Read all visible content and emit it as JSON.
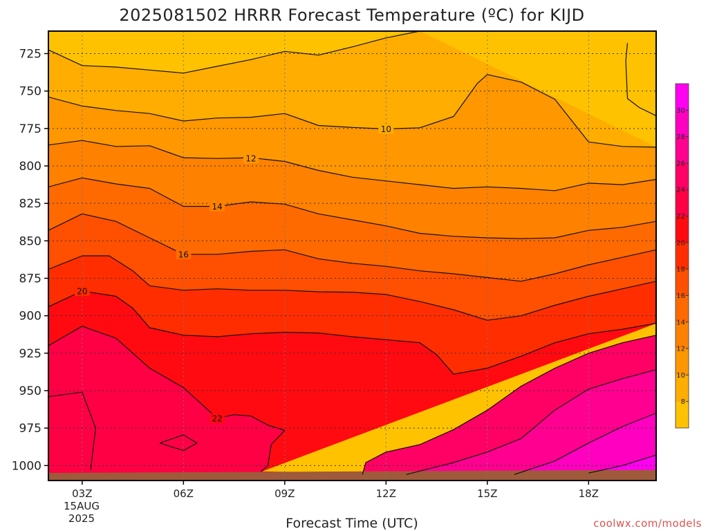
{
  "chart_data": {
    "type": "contour",
    "title": "2025081502 HRRR Forecast Temperature (ºC) for KIJD",
    "xlabel": "Forecast Time (UTC)",
    "credit": "coolwx.com/models",
    "y_axis": {
      "inverted": true,
      "ticks": [
        725,
        750,
        775,
        800,
        825,
        850,
        875,
        900,
        925,
        950,
        975,
        1000
      ],
      "tick_labels": [
        "725",
        "750",
        "775",
        "800",
        "825",
        "850",
        "875",
        "900",
        "925",
        "950",
        "975",
        "1000"
      ],
      "range": [
        1010,
        710
      ]
    },
    "x_axis": {
      "range": [
        2,
        20
      ],
      "ticks": [
        3,
        6,
        9,
        12,
        15,
        18
      ],
      "tick_labels": [
        "03Z",
        "06Z",
        "09Z",
        "12Z",
        "15Z",
        "18Z"
      ],
      "date_line1": "15AUG",
      "date_line2": "2025"
    },
    "grid": true,
    "colorbar": {
      "placement": "right",
      "levels": [
        8,
        10,
        12,
        14,
        16,
        18,
        20,
        22,
        24,
        26,
        28,
        30
      ],
      "labels": [
        "8",
        "10",
        "12",
        "14",
        "16",
        "18",
        "20",
        "22",
        "24",
        "26",
        "28",
        "30"
      ],
      "colors": [
        "#ffc200",
        "#ffad00",
        "#ff9700",
        "#ff8100",
        "#ff6a00",
        "#ff4f00",
        "#ff2d00",
        "#ff0a10",
        "#ff0045",
        "#ff0065",
        "#ff0090",
        "#ff00c0",
        "#ff00f0"
      ]
    },
    "ground_color": "#9e5a3a",
    "contours": [
      {
        "level": 10,
        "label": "10",
        "label_at": [
          12,
          775.3
        ],
        "points": [
          [
            2,
            722.5
          ],
          [
            3,
            733
          ],
          [
            4,
            734
          ],
          [
            5,
            736
          ],
          [
            6,
            738
          ],
          [
            7,
            733.5
          ],
          [
            8,
            729
          ],
          [
            9,
            723.5
          ],
          [
            10,
            726
          ],
          [
            11,
            720.5
          ],
          [
            12,
            714.5
          ],
          [
            13,
            710
          ]
        ]
      },
      {
        "level": 10,
        "points": [
          [
            2,
            754
          ],
          [
            3,
            760
          ],
          [
            4,
            763
          ],
          [
            5,
            765
          ],
          [
            6,
            770
          ],
          [
            7,
            768
          ],
          [
            8,
            767.5
          ],
          [
            9,
            765
          ],
          [
            10,
            773
          ],
          [
            11,
            774.3
          ],
          [
            12,
            775.3
          ],
          [
            13,
            774.5
          ],
          [
            14,
            767
          ],
          [
            14.7,
            745
          ],
          [
            15,
            739
          ],
          [
            16,
            744
          ],
          [
            17,
            755.5
          ],
          [
            18,
            784
          ],
          [
            19,
            787
          ],
          [
            20,
            787.5
          ]
        ]
      },
      {
        "level": 10,
        "points": [
          [
            19.15,
            718
          ],
          [
            19.1,
            730
          ],
          [
            19.15,
            755
          ],
          [
            19.5,
            761
          ],
          [
            20,
            766.5
          ]
        ]
      },
      {
        "level": 12,
        "label": "12",
        "label_at": [
          8,
          795
        ],
        "points": [
          [
            2,
            786
          ],
          [
            3,
            783
          ],
          [
            4,
            787
          ],
          [
            5,
            786.5
          ],
          [
            6,
            794.5
          ],
          [
            7,
            795
          ],
          [
            8,
            794.5
          ],
          [
            9,
            797
          ],
          [
            10,
            803
          ],
          [
            11,
            807.5
          ],
          [
            12,
            810
          ],
          [
            13,
            812.5
          ],
          [
            14,
            815
          ],
          [
            15,
            814
          ],
          [
            16,
            815
          ],
          [
            17,
            816.5
          ],
          [
            18,
            811.5
          ],
          [
            19,
            812.5
          ],
          [
            20,
            809
          ]
        ]
      },
      {
        "level": 14,
        "label": "14",
        "label_at": [
          7,
          827
        ],
        "points": [
          [
            2,
            814
          ],
          [
            3,
            808
          ],
          [
            4,
            812
          ],
          [
            5,
            815
          ],
          [
            6,
            827
          ],
          [
            7,
            827
          ],
          [
            8,
            824
          ],
          [
            9,
            825.5
          ],
          [
            10,
            832
          ],
          [
            11,
            836
          ],
          [
            12,
            840
          ],
          [
            13,
            845
          ],
          [
            14,
            847
          ],
          [
            15,
            848
          ],
          [
            16,
            848.5
          ],
          [
            17,
            848
          ],
          [
            18,
            843
          ],
          [
            19,
            841
          ],
          [
            20,
            837
          ]
        ]
      },
      {
        "level": 16,
        "label": "16",
        "label_at": [
          6,
          859
        ],
        "points": [
          [
            2,
            843
          ],
          [
            3,
            832
          ],
          [
            4,
            837
          ],
          [
            5,
            848
          ],
          [
            6,
            859
          ],
          [
            7,
            859
          ],
          [
            8,
            857
          ],
          [
            9,
            856
          ],
          [
            10,
            862
          ],
          [
            11,
            865
          ],
          [
            12,
            867
          ],
          [
            13,
            870
          ],
          [
            14,
            872
          ],
          [
            15,
            874.5
          ],
          [
            16,
            877
          ],
          [
            17,
            872
          ],
          [
            18,
            866
          ],
          [
            19,
            861
          ],
          [
            20,
            856
          ]
        ]
      },
      {
        "level": 18,
        "points": [
          [
            2,
            869
          ],
          [
            3,
            860
          ],
          [
            3.8,
            860
          ],
          [
            4.5,
            870
          ],
          [
            5,
            880
          ],
          [
            6,
            883
          ],
          [
            7,
            882
          ],
          [
            8,
            883
          ],
          [
            9,
            883
          ],
          [
            10,
            884
          ],
          [
            11,
            884.3
          ],
          [
            12,
            885.8
          ],
          [
            13,
            890.5
          ],
          [
            14,
            896
          ],
          [
            15,
            903
          ],
          [
            16,
            900
          ],
          [
            17,
            893
          ],
          [
            18,
            887
          ],
          [
            19,
            882
          ],
          [
            20,
            877
          ]
        ]
      },
      {
        "level": 20,
        "label": "20",
        "label_at": [
          3,
          883.5
        ],
        "points": [
          [
            2,
            894
          ],
          [
            3,
            883.5
          ],
          [
            4,
            887
          ],
          [
            4.5,
            895
          ],
          [
            5,
            908
          ],
          [
            6,
            913
          ],
          [
            7,
            914
          ],
          [
            8,
            912
          ],
          [
            9,
            911
          ],
          [
            10,
            911.5
          ],
          [
            11,
            914
          ],
          [
            12,
            916
          ],
          [
            13,
            918
          ],
          [
            13.5,
            926
          ],
          [
            14,
            939
          ],
          [
            15,
            935
          ],
          [
            16,
            927
          ],
          [
            17,
            918
          ],
          [
            18,
            912
          ],
          [
            19,
            909
          ],
          [
            20,
            905
          ]
        ]
      },
      {
        "level": 22,
        "label": "22",
        "label_at": [
          7,
          968.5
        ],
        "points": [
          [
            2,
            920
          ],
          [
            3,
            907
          ],
          [
            4,
            915
          ],
          [
            5,
            935
          ],
          [
            6,
            948
          ],
          [
            7,
            968.5
          ],
          [
            7.5,
            966
          ],
          [
            8,
            967
          ],
          [
            8.5,
            973
          ],
          [
            9,
            976.5
          ],
          [
            8.6,
            986
          ],
          [
            8.5,
            1000
          ],
          [
            8.3,
            1004
          ]
        ]
      },
      {
        "level": 22,
        "points": [
          [
            2,
            954
          ],
          [
            3,
            951
          ],
          [
            3.4,
            975
          ],
          [
            3.25,
            1003
          ]
        ]
      },
      {
        "level": 22,
        "points": [
          [
            5.3,
            985
          ],
          [
            6,
            979.5
          ],
          [
            6.4,
            985
          ],
          [
            6,
            990
          ],
          [
            5.3,
            985
          ]
        ]
      },
      {
        "level": 24,
        "points": [
          [
            11.3,
            1006
          ],
          [
            11.4,
            998
          ],
          [
            12,
            991
          ],
          [
            13,
            986
          ],
          [
            14,
            976
          ],
          [
            15,
            963
          ],
          [
            16,
            947
          ],
          [
            17,
            935
          ],
          [
            18,
            925
          ],
          [
            19,
            918
          ],
          [
            20,
            913
          ]
        ]
      },
      {
        "level": 26,
        "points": [
          [
            12.6,
            1006
          ],
          [
            14,
            998
          ],
          [
            15,
            991
          ],
          [
            16,
            982
          ],
          [
            17,
            963
          ],
          [
            18,
            949
          ],
          [
            19,
            942
          ],
          [
            20,
            936
          ]
        ]
      },
      {
        "level": 28,
        "points": [
          [
            15.8,
            1006
          ],
          [
            17,
            997
          ],
          [
            18,
            985
          ],
          [
            19,
            974
          ],
          [
            20,
            965
          ]
        ]
      },
      {
        "level": 30,
        "points": [
          [
            18,
            1005
          ],
          [
            19,
            1000
          ],
          [
            20,
            993
          ]
        ]
      }
    ],
    "fill_bands": [
      {
        "color": "#ffc200",
        "above_contour": 0
      },
      {
        "color": "#ffad00",
        "between": [
          0,
          1
        ]
      },
      {
        "color": "#ff9700",
        "between": [
          1,
          3
        ]
      },
      {
        "color": "#ff8100",
        "between": [
          3,
          4
        ]
      },
      {
        "color": "#ff6a00",
        "between": [
          4,
          5
        ]
      },
      {
        "color": "#ff4f00",
        "between": [
          5,
          6
        ]
      },
      {
        "color": "#ff2d00",
        "between": [
          6,
          7
        ]
      },
      {
        "color": "#ff0a10",
        "between": [
          7,
          8
        ]
      },
      {
        "color": "#ff0045",
        "below_contour": 8
      },
      {
        "color": "#ff0065",
        "below_contour": 11
      },
      {
        "color": "#ff0090",
        "below_contour": 12
      },
      {
        "color": "#ff00c0",
        "below_contour": 13
      },
      {
        "color": "#ff00f0",
        "below_contour": 14
      }
    ]
  }
}
